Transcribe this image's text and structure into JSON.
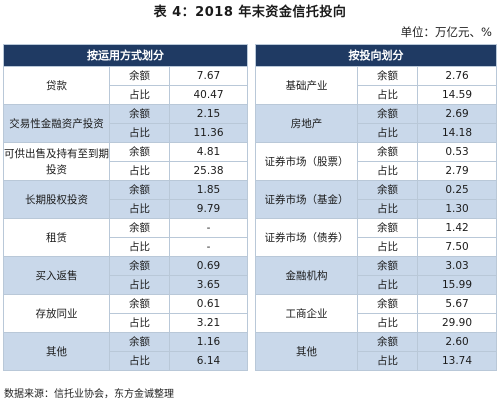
{
  "title": "表 4：2018 年末资金信托投向",
  "unit": "单位：万亿元、%",
  "header": {
    "left": "按运用方式划分",
    "right": "按投向划分"
  },
  "sub_labels": {
    "balance": "余额",
    "share": "占比"
  },
  "rows": [
    {
      "left_cat": "贷款",
      "left_balance": "7.67",
      "left_share": "40.47",
      "right_cat": "基础产业",
      "right_balance": "2.76",
      "right_share": "14.59"
    },
    {
      "left_cat": "交易性金融资产投资",
      "left_balance": "2.15",
      "left_share": "11.36",
      "right_cat": "房地产",
      "right_balance": "2.69",
      "right_share": "14.18"
    },
    {
      "left_cat": "可供出售及持有至到期投资",
      "left_balance": "4.81",
      "left_share": "25.38",
      "right_cat": "证券市场（股票）",
      "right_balance": "0.53",
      "right_share": "2.79"
    },
    {
      "left_cat": "长期股权投资",
      "left_balance": "1.85",
      "left_share": "9.79",
      "right_cat": "证券市场（基金）",
      "right_balance": "0.25",
      "right_share": "1.30"
    },
    {
      "left_cat": "租赁",
      "left_balance": "-",
      "left_share": "-",
      "right_cat": "证券市场（债券）",
      "right_balance": "1.42",
      "right_share": "7.50"
    },
    {
      "left_cat": "买入返售",
      "left_balance": "0.69",
      "left_share": "3.65",
      "right_cat": "金融机构",
      "right_balance": "3.03",
      "right_share": "15.99"
    },
    {
      "left_cat": "存放同业",
      "left_balance": "0.61",
      "left_share": "3.21",
      "right_cat": "工商企业",
      "right_balance": "5.67",
      "right_share": "29.90"
    },
    {
      "left_cat": "其他",
      "left_balance": "1.16",
      "left_share": "6.14",
      "right_cat": "其他",
      "right_balance": "2.60",
      "right_share": "13.74"
    }
  ],
  "source": "数据来源：信托业协会，东方金诚整理",
  "colors": {
    "header_bg": "#1f3a63",
    "shade": "#c9d8ea",
    "border": "#b9c8d8"
  }
}
